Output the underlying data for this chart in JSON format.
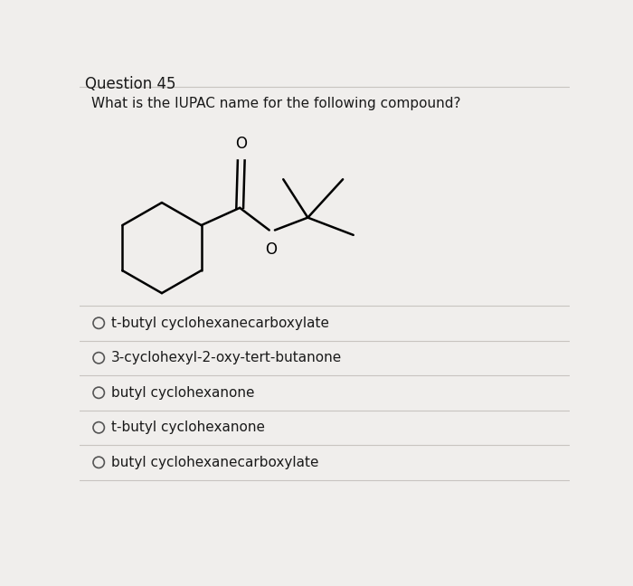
{
  "title": "Question 45",
  "question_text": "What is the IUPAC name for the following compound?",
  "options": [
    "t-butyl cyclohexanecarboxylate",
    "3-cyclohexyl-2-oxy-tert-butanone",
    "butyl cyclohexanone",
    "t-butyl cyclohexanone",
    "butyl cyclohexanecarboxylate"
  ],
  "bg_color": "#f0eeec",
  "text_color": "#1a1a1a",
  "title_fontsize": 12,
  "question_fontsize": 11,
  "option_fontsize": 11,
  "line_color": "#c8c4c0",
  "circle_color": "#555555",
  "struct_lw": 1.8
}
